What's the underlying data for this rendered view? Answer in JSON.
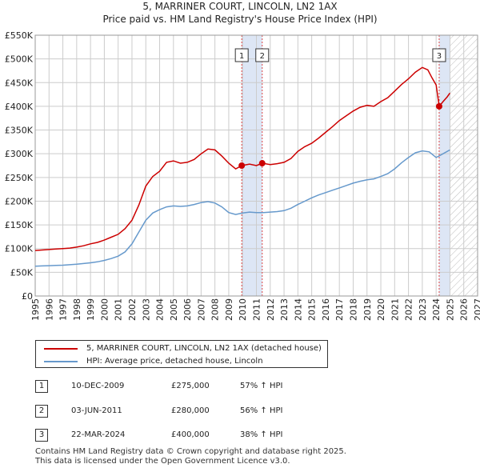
{
  "title": {
    "line1": "5, MARRINER COURT, LINCOLN, LN2 1AX",
    "line2": "Price paid vs. HM Land Registry's House Price Index (HPI)"
  },
  "colors": {
    "property": "#cc0000",
    "hpi": "#6699cc",
    "shade": "#dde6f5",
    "future_hatch": "#bbbbbb",
    "grid": "#cccccc",
    "marker_line": "#dd4444"
  },
  "chart_data": {
    "type": "line",
    "title": "5, MARRINER COURT, LINCOLN, LN2 1AX — Price paid vs. HM Land Registry's House Price Index (HPI)",
    "xlim": [
      1995,
      2027
    ],
    "ylim": [
      0,
      550000
    ],
    "x_ticks": [
      1995,
      1996,
      1997,
      1998,
      1999,
      2000,
      2001,
      2002,
      2003,
      2004,
      2005,
      2006,
      2007,
      2008,
      2009,
      2010,
      2011,
      2012,
      2013,
      2014,
      2015,
      2016,
      2017,
      2018,
      2019,
      2020,
      2021,
      2022,
      2023,
      2024,
      2025,
      2026,
      2027
    ],
    "y_ticks": [
      0,
      50000,
      100000,
      150000,
      200000,
      250000,
      300000,
      350000,
      400000,
      450000,
      500000,
      550000
    ],
    "y_tick_labels": [
      "£0",
      "£50K",
      "£100K",
      "£150K",
      "£200K",
      "£250K",
      "£300K",
      "£350K",
      "£400K",
      "£450K",
      "£500K",
      "£550K"
    ],
    "shaded_ranges": [
      [
        2009.94,
        2011.42
      ],
      [
        2024.22,
        2025.0
      ]
    ],
    "future_from": 2025.0,
    "series": [
      {
        "name": "5, MARRINER COURT, LINCOLN, LN2 1AX (detached house)",
        "x": [
          1995.0,
          1995.5,
          1996.0,
          1996.5,
          1997.0,
          1997.5,
          1998.0,
          1998.5,
          1999.0,
          1999.5,
          2000.0,
          2000.5,
          2001.0,
          2001.5,
          2002.0,
          2002.5,
          2003.0,
          2003.5,
          2004.0,
          2004.5,
          2005.0,
          2005.5,
          2006.0,
          2006.5,
          2007.0,
          2007.5,
          2008.0,
          2008.5,
          2009.0,
          2009.5,
          2009.94,
          2010.5,
          2011.0,
          2011.42,
          2012.0,
          2012.5,
          2013.0,
          2013.5,
          2014.0,
          2014.5,
          2015.0,
          2015.5,
          2016.0,
          2016.5,
          2017.0,
          2017.5,
          2018.0,
          2018.5,
          2019.0,
          2019.5,
          2020.0,
          2020.5,
          2021.0,
          2021.5,
          2022.0,
          2022.5,
          2023.0,
          2023.4,
          2023.7,
          2024.0,
          2024.22,
          2024.5,
          2024.8,
          2025.0
        ],
        "values": [
          96000,
          97000,
          98000,
          99000,
          100000,
          101000,
          103000,
          106000,
          110000,
          113000,
          118000,
          124000,
          130000,
          142000,
          160000,
          192000,
          232000,
          252000,
          263000,
          282000,
          285000,
          280000,
          282000,
          288000,
          300000,
          310000,
          308000,
          295000,
          280000,
          268000,
          275000,
          278000,
          275000,
          280000,
          277000,
          279000,
          282000,
          290000,
          305000,
          315000,
          322000,
          333000,
          345000,
          357000,
          370000,
          380000,
          390000,
          398000,
          402000,
          400000,
          410000,
          418000,
          432000,
          446000,
          458000,
          472000,
          482000,
          477000,
          460000,
          445000,
          400000,
          410000,
          420000,
          428000
        ]
      },
      {
        "name": "HPI: Average price, detached house, Lincoln",
        "x": [
          1995.0,
          1995.5,
          1996.0,
          1996.5,
          1997.0,
          1997.5,
          1998.0,
          1998.5,
          1999.0,
          1999.5,
          2000.0,
          2000.5,
          2001.0,
          2001.5,
          2002.0,
          2002.5,
          2003.0,
          2003.5,
          2004.0,
          2004.5,
          2005.0,
          2005.5,
          2006.0,
          2006.5,
          2007.0,
          2007.5,
          2008.0,
          2008.5,
          2009.0,
          2009.5,
          2010.0,
          2010.5,
          2011.0,
          2011.5,
          2012.0,
          2012.5,
          2013.0,
          2013.5,
          2014.0,
          2014.5,
          2015.0,
          2015.5,
          2016.0,
          2016.5,
          2017.0,
          2017.5,
          2018.0,
          2018.5,
          2019.0,
          2019.5,
          2020.0,
          2020.5,
          2021.0,
          2021.5,
          2022.0,
          2022.5,
          2023.0,
          2023.5,
          2024.0,
          2024.5,
          2025.0
        ],
        "values": [
          63000,
          63500,
          64000,
          64500,
          65000,
          66000,
          67000,
          68500,
          70000,
          72000,
          75000,
          79000,
          84000,
          93000,
          110000,
          135000,
          160000,
          175000,
          182000,
          188000,
          190000,
          189000,
          190000,
          193000,
          197000,
          199000,
          196000,
          188000,
          176000,
          172000,
          175000,
          177000,
          176000,
          176000,
          177000,
          178000,
          180000,
          185000,
          193000,
          200000,
          207000,
          213000,
          218000,
          223000,
          228000,
          233000,
          238000,
          242000,
          245000,
          247000,
          252000,
          258000,
          268000,
          281000,
          292000,
          302000,
          306000,
          304000,
          292000,
          300000,
          308000
        ]
      }
    ],
    "transactions_plotted": [
      {
        "label": "1",
        "x": 2009.94,
        "value": 275000
      },
      {
        "label": "2",
        "x": 2011.42,
        "value": 280000
      },
      {
        "label": "3",
        "x": 2024.22,
        "value": 400000
      }
    ]
  },
  "legend": {
    "property_label": "5, MARRINER COURT, LINCOLN, LN2 1AX (detached house)",
    "hpi_label": "HPI: Average price, detached house, Lincoln"
  },
  "transactions": [
    {
      "num": "1",
      "date": "10-DEC-2009",
      "price": "£275,000",
      "hpi": "57% ↑ HPI"
    },
    {
      "num": "2",
      "date": "03-JUN-2011",
      "price": "£280,000",
      "hpi": "56% ↑ HPI"
    },
    {
      "num": "3",
      "date": "22-MAR-2024",
      "price": "£400,000",
      "hpi": "38% ↑ HPI"
    }
  ],
  "footer": {
    "line1": "Contains HM Land Registry data © Crown copyright and database right 2025.",
    "line2": "This data is licensed under the Open Government Licence v3.0."
  }
}
